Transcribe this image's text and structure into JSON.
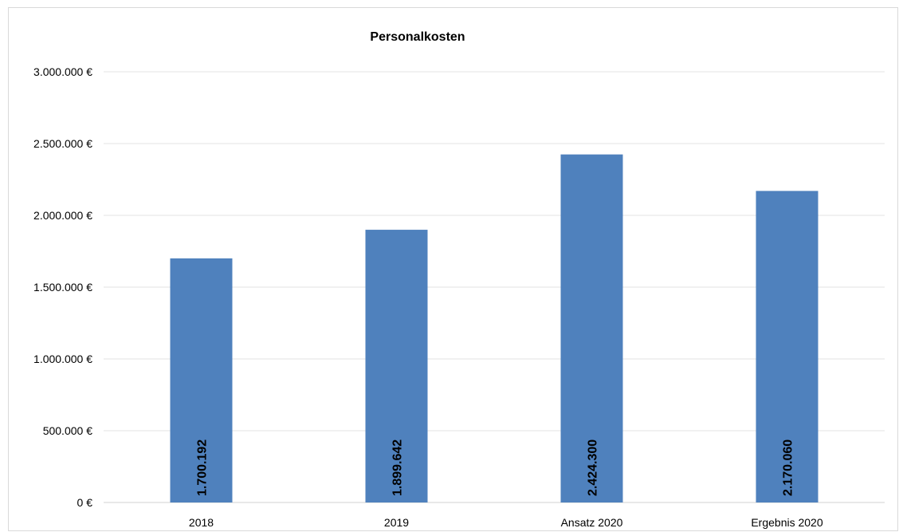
{
  "chart_data": {
    "type": "bar",
    "title": "Personalkosten",
    "xlabel": "",
    "ylabel": "",
    "categories": [
      "2018",
      "2019",
      "Ansatz 2020",
      "Ergebnis 2020"
    ],
    "values": [
      1700192,
      1899642,
      2424300,
      2170060
    ],
    "data_labels": [
      "1.700.192",
      "1.899.642",
      "2.424.300",
      "2.170.060"
    ],
    "ylim": [
      0,
      3000000
    ],
    "yticks": [
      0,
      500000,
      1000000,
      1500000,
      2000000,
      2500000,
      3000000
    ],
    "ytick_labels": [
      "0 €",
      "500.000 €",
      "1.000.000 €",
      "1.500.000 €",
      "2.000.000 €",
      "2.500.000 €",
      "3.000.000 €"
    ],
    "grid": true,
    "legend": "none",
    "bar_color": "#4f81bd"
  }
}
